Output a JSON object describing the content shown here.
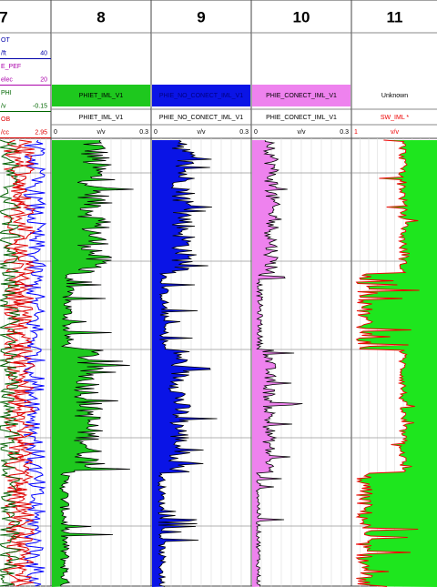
{
  "tracks": [
    {
      "number": "7",
      "lines": [
        {
          "text": "OT"
        },
        {
          "text": "/ft",
          "right": "40"
        },
        {
          "text": "E_PEF"
        },
        {
          "text": "elec",
          "right": "20"
        },
        {
          "text": "PHI"
        },
        {
          "text": "/v",
          "right": "-0.15"
        },
        {
          "text": "OB"
        },
        {
          "text": "/cc",
          "right": "2.95"
        }
      ]
    },
    {
      "number": "8",
      "fill_name": "PHIET_IML_V1",
      "curve": "PHIET_IML_V1",
      "scale_left": "0",
      "unit": "v/v",
      "scale_right": "0.3"
    },
    {
      "number": "9",
      "fill_name": "PHIE_NO_CONECT_IML_V1",
      "curve": "PHIE_NO_CONECT_IML_V1",
      "scale_left": "0",
      "unit": "v/v",
      "scale_right": "0.3"
    },
    {
      "number": "10",
      "fill_name": "PHIE_CONECT_IML_V1",
      "curve": "PHIE_CONECT_IML_V1",
      "scale_left": "0",
      "unit": "v/v",
      "scale_right": "0.3"
    },
    {
      "number": "11",
      "fill_name": "Unknown",
      "curve": "SW_IML *",
      "scale_left": "1",
      "unit": "v/v"
    }
  ]
}
